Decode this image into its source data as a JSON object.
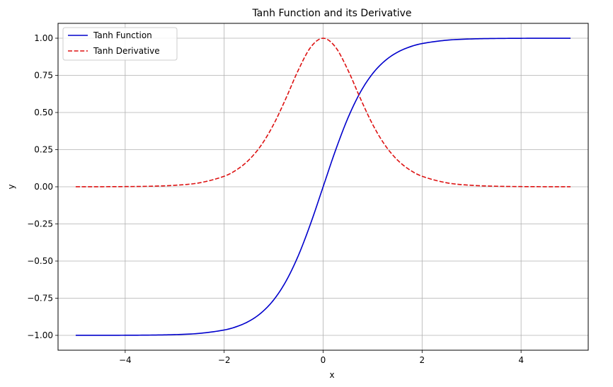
{
  "chart_data": {
    "type": "line",
    "title": "Tanh Function and its Derivative",
    "xlabel": "x",
    "ylabel": "y",
    "xlim": [
      -5.357,
      5.357
    ],
    "ylim": [
      -1.1,
      1.1
    ],
    "xticks": [
      -4,
      -2,
      0,
      2,
      4
    ],
    "xtick_labels": [
      "−4",
      "−2",
      "0",
      "2",
      "4"
    ],
    "yticks": [
      -1.0,
      -0.75,
      -0.5,
      -0.25,
      0.0,
      0.25,
      0.5,
      0.75,
      1.0
    ],
    "ytick_labels": [
      "−1.00",
      "−0.75",
      "−0.50",
      "−0.25",
      "0.00",
      "0.25",
      "0.50",
      "0.75",
      "1.00"
    ],
    "grid": true,
    "legend_position": "top-left",
    "x": [
      -5.0,
      -4.5,
      -4.0,
      -3.5,
      -3.0,
      -2.5,
      -2.0,
      -1.75,
      -1.5,
      -1.25,
      -1.0,
      -0.75,
      -0.5,
      -0.25,
      0.0,
      0.25,
      0.5,
      0.75,
      1.0,
      1.25,
      1.5,
      1.75,
      2.0,
      2.5,
      3.0,
      3.5,
      4.0,
      4.5,
      5.0
    ],
    "series": [
      {
        "name": "Tanh Function",
        "color": "#0000cc",
        "style": "solid",
        "values": [
          -0.9999,
          -0.9998,
          -0.9993,
          -0.9982,
          -0.9951,
          -0.9866,
          -0.964,
          -0.9414,
          -0.9051,
          -0.8483,
          -0.7616,
          -0.6351,
          -0.4621,
          -0.2449,
          0.0,
          0.2449,
          0.4621,
          0.6351,
          0.7616,
          0.8483,
          0.9051,
          0.9414,
          0.964,
          0.9866,
          0.9951,
          0.9982,
          0.9993,
          0.9998,
          0.9999
        ]
      },
      {
        "name": "Tanh Derivative",
        "color": "#dd1111",
        "style": "dashed",
        "values": [
          0.0002,
          0.0005,
          0.0013,
          0.0036,
          0.0099,
          0.0266,
          0.0707,
          0.1138,
          0.1807,
          0.2804,
          0.42,
          0.5966,
          0.7864,
          0.94,
          1.0,
          0.94,
          0.7864,
          0.5966,
          0.42,
          0.2804,
          0.1807,
          0.1138,
          0.0707,
          0.0266,
          0.0099,
          0.0036,
          0.0013,
          0.0005,
          0.0002
        ]
      }
    ]
  }
}
